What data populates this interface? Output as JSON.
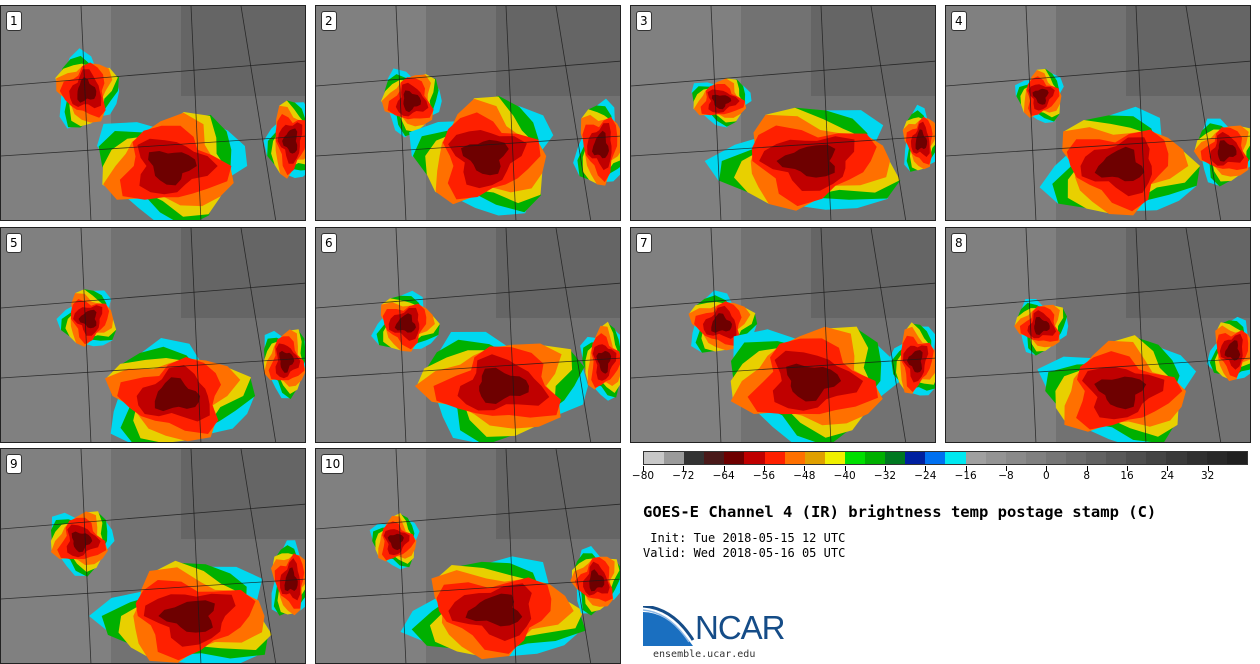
{
  "panels": [
    {
      "label": "1"
    },
    {
      "label": "2"
    },
    {
      "label": "3"
    },
    {
      "label": "4"
    },
    {
      "label": "5"
    },
    {
      "label": "6"
    },
    {
      "label": "7"
    },
    {
      "label": "8"
    },
    {
      "label": "9"
    },
    {
      "label": "10"
    }
  ],
  "colorbar": {
    "colors": [
      "#c8c8c8",
      "#9b9b9b",
      "#333333",
      "#4a1a1a",
      "#6e0000",
      "#c00000",
      "#ff2000",
      "#ff7000",
      "#e0a000",
      "#f0f000",
      "#00e000",
      "#00b000",
      "#007820",
      "#0020a0",
      "#0070f0",
      "#00e8f0",
      "#a0a0a0",
      "#949494",
      "#8a8a8a",
      "#808080",
      "#767676",
      "#6c6c6c",
      "#626262",
      "#585858",
      "#4e4e4e",
      "#444444",
      "#3a3a3a",
      "#303030",
      "#282828",
      "#202020"
    ],
    "ticks": [
      "−80",
      "−72",
      "−64",
      "−56",
      "−48",
      "−40",
      "−32",
      "−24",
      "−16",
      "−8",
      "0",
      "8",
      "16",
      "24",
      "32"
    ],
    "min": -80,
    "max": 40
  },
  "title": "GOES-E Channel 4 (IR) brightness temp postage stamp (C)",
  "init": " Init: Tue 2018-05-15 12 UTC",
  "valid": "Valid: Wed 2018-05-16 05 UTC",
  "logo_text": "NCAR",
  "site": "ensemble.ucar.edu"
}
